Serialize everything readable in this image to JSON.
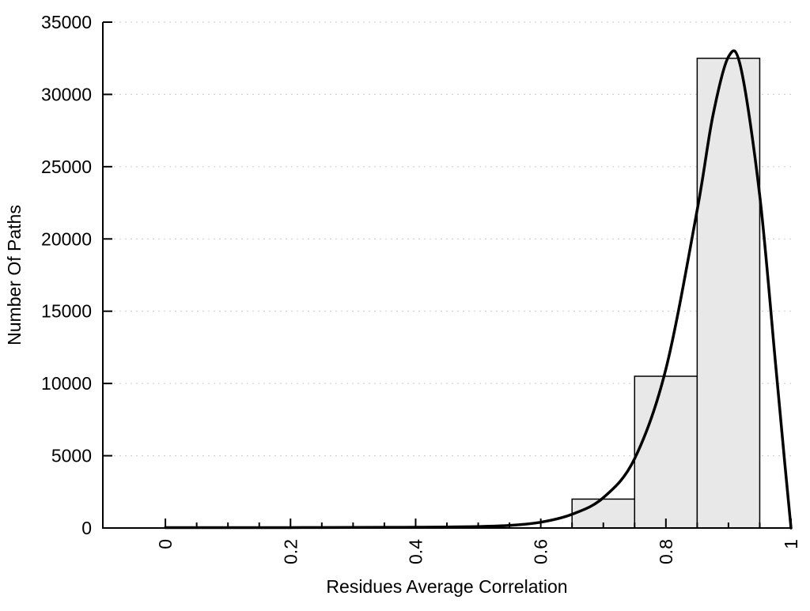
{
  "chart_data": {
    "type": "bar",
    "subtype": "histogram-with-density-curve",
    "title": "",
    "xlabel": "Residues Average Correlation",
    "ylabel": "Number Of Paths",
    "xlim": [
      -0.1,
      1.0
    ],
    "ylim": [
      0,
      35000
    ],
    "grid": "horizontal-dotted",
    "legend": "none",
    "xticks": {
      "labeled": [
        0,
        0.2,
        0.4,
        0.6,
        0.8,
        1
      ],
      "minor_step": 0.05,
      "minor_range": [
        0,
        1
      ],
      "label_rotation_degrees": -90
    },
    "yticks": {
      "labeled": [
        0,
        5000,
        10000,
        15000,
        20000,
        25000,
        30000,
        35000
      ]
    },
    "bars": {
      "fill": "#e8e8e8",
      "stroke": "#000000",
      "bins": [
        {
          "x0": 0.65,
          "x1": 0.75,
          "count": 2000
        },
        {
          "x0": 0.75,
          "x1": 0.85,
          "count": 10500
        },
        {
          "x0": 0.85,
          "x1": 0.95,
          "count": 32500
        }
      ]
    },
    "curve": {
      "color": "#000000",
      "points": [
        [
          0.0,
          30
        ],
        [
          0.05,
          30
        ],
        [
          0.1,
          30
        ],
        [
          0.15,
          30
        ],
        [
          0.2,
          30
        ],
        [
          0.25,
          35
        ],
        [
          0.3,
          40
        ],
        [
          0.35,
          45
        ],
        [
          0.4,
          55
        ],
        [
          0.45,
          70
        ],
        [
          0.5,
          100
        ],
        [
          0.55,
          180
        ],
        [
          0.6,
          400
        ],
        [
          0.65,
          950
        ],
        [
          0.7,
          2100
        ],
        [
          0.75,
          4800
        ],
        [
          0.8,
          11000
        ],
        [
          0.85,
          22000
        ],
        [
          0.875,
          28500
        ],
        [
          0.9,
          32600
        ],
        [
          0.92,
          31800
        ],
        [
          0.95,
          23000
        ],
        [
          0.975,
          11500
        ],
        [
          0.99,
          4500
        ],
        [
          1.0,
          0
        ]
      ]
    }
  }
}
